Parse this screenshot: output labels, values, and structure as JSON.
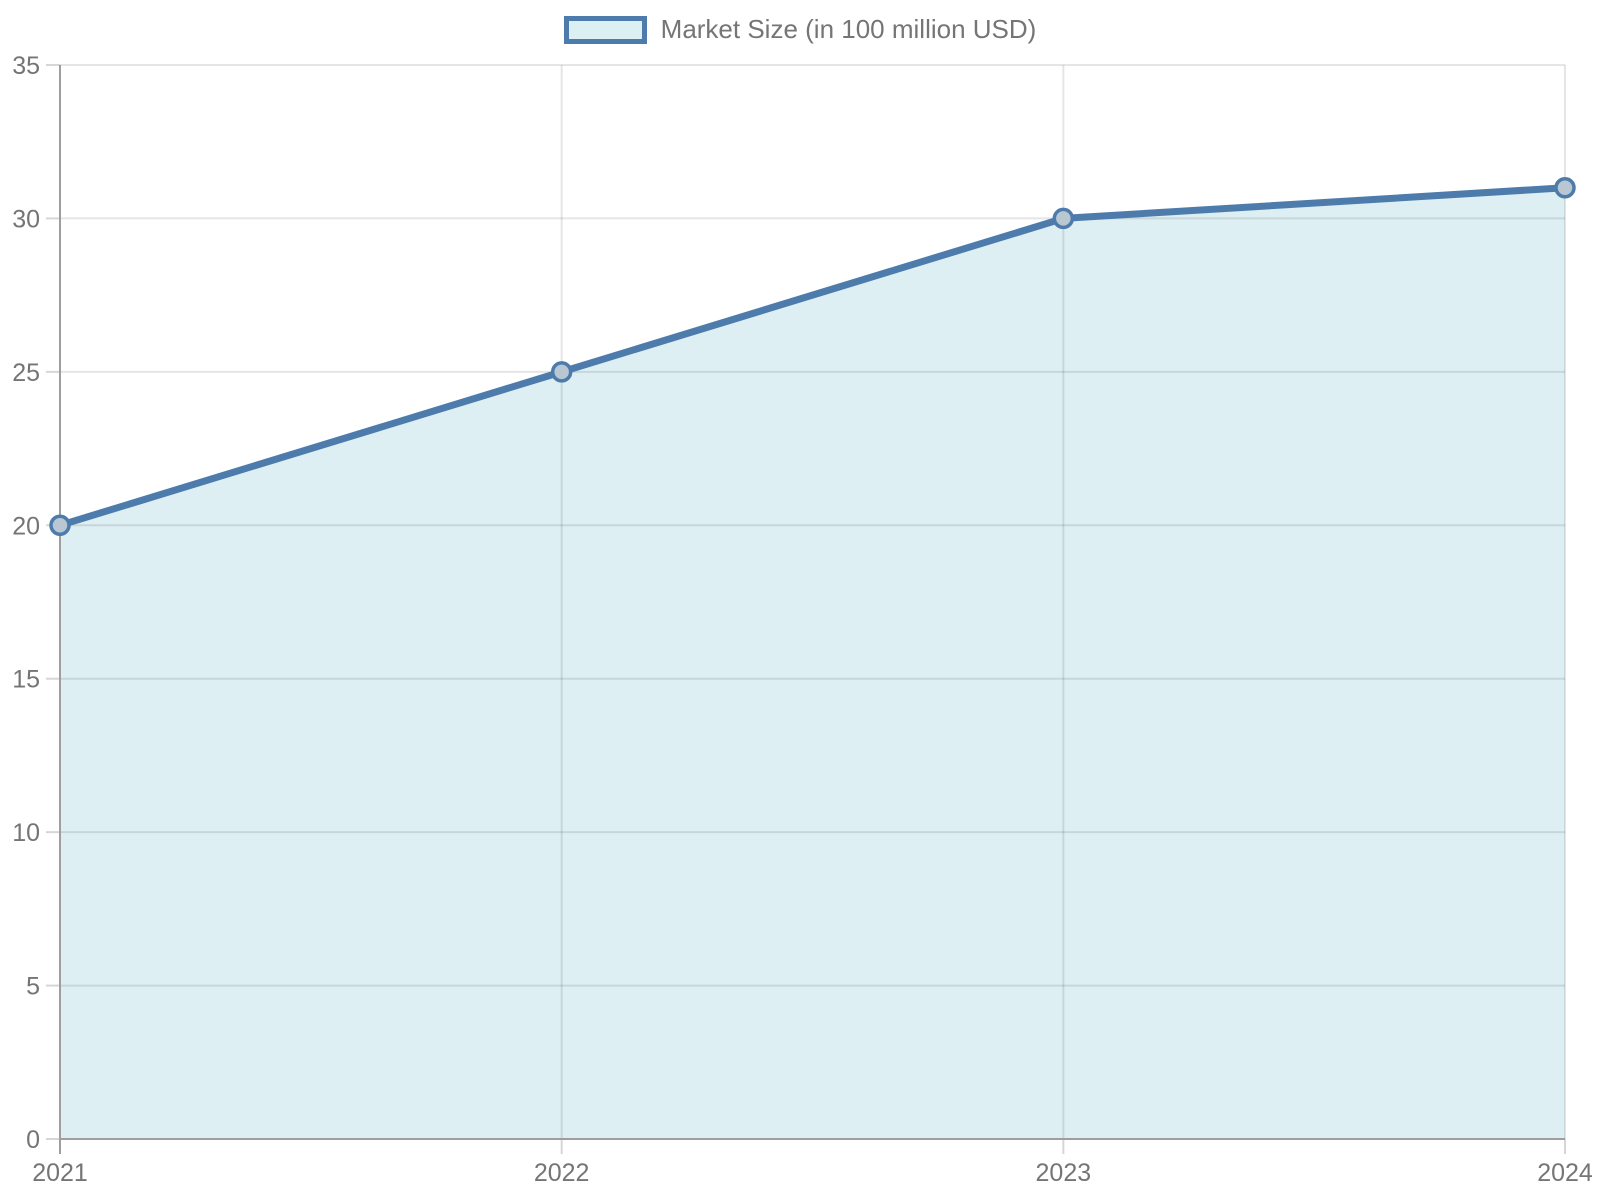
{
  "chart_data": {
    "type": "area",
    "title": "",
    "legend_position": "top",
    "categories": [
      "2021",
      "2022",
      "2023",
      "2024"
    ],
    "series": [
      {
        "name": "Market Size (in 100 million USD)",
        "values": [
          20,
          25,
          30,
          31
        ]
      }
    ],
    "xlabel": "",
    "ylabel": "",
    "ylim": [
      0,
      35
    ],
    "y_ticks": [
      0,
      5,
      10,
      15,
      20,
      25,
      30,
      35
    ],
    "grid": true,
    "colors": {
      "line": "#4d7cac",
      "area_fill": "#ddeff2",
      "marker_fill": "#b9c7d3",
      "legend_swatch_fill": "#dcf0f3",
      "axis": "#9e9e9e",
      "tick": "#d6d6d6",
      "gridline": "rgba(0,0,0,0.10)",
      "label_text": "#757575"
    }
  }
}
